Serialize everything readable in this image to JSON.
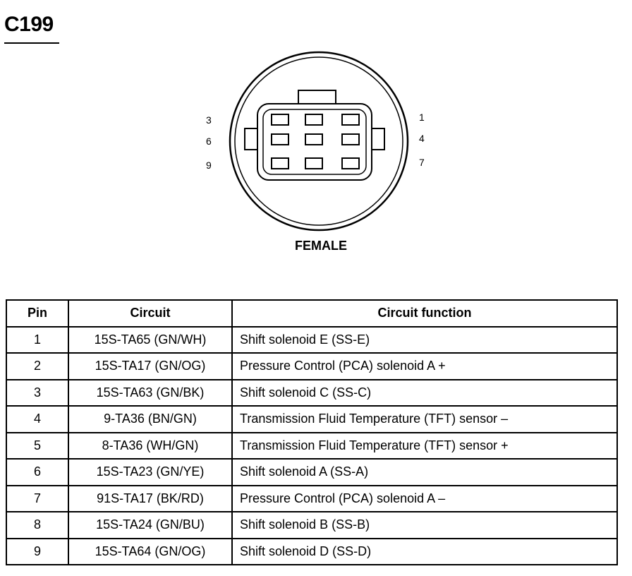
{
  "title": "C199",
  "connector": {
    "gender_label": "FEMALE",
    "left_pin_labels": [
      "3",
      "6",
      "9"
    ],
    "right_pin_labels": [
      "1",
      "4",
      "7"
    ]
  },
  "table": {
    "headers": {
      "pin": "Pin",
      "circuit": "Circuit",
      "function": "Circuit function"
    },
    "rows": [
      {
        "pin": "1",
        "circuit": "15S-TA65 (GN/WH)",
        "function": "Shift solenoid E (SS-E)"
      },
      {
        "pin": "2",
        "circuit": "15S-TA17 (GN/OG)",
        "function": "Pressure Control (PCA) solenoid A +"
      },
      {
        "pin": "3",
        "circuit": "15S-TA63 (GN/BK)",
        "function": "Shift solenoid C (SS-C)"
      },
      {
        "pin": "4",
        "circuit": "9-TA36 (BN/GN)",
        "function": "Transmission Fluid Temperature (TFT) sensor –"
      },
      {
        "pin": "5",
        "circuit": "8-TA36 (WH/GN)",
        "function": "Transmission Fluid Temperature (TFT) sensor +"
      },
      {
        "pin": "6",
        "circuit": "15S-TA23 (GN/YE)",
        "function": "Shift solenoid A (SS-A)"
      },
      {
        "pin": "7",
        "circuit": "91S-TA17 (BK/RD)",
        "function": "Pressure Control (PCA) solenoid A –"
      },
      {
        "pin": "8",
        "circuit": "15S-TA24 (GN/BU)",
        "function": "Shift solenoid B (SS-B)"
      },
      {
        "pin": "9",
        "circuit": "15S-TA64 (GN/OG)",
        "function": "Shift solenoid D (SS-D)"
      }
    ]
  }
}
